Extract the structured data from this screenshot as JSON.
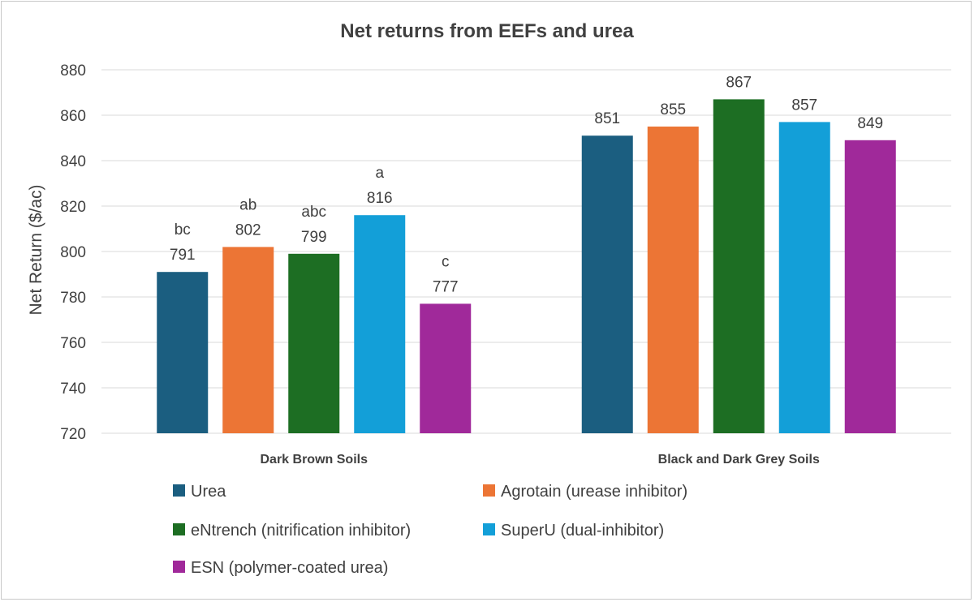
{
  "chart_data": {
    "type": "bar",
    "title": "Net returns from EEFs and urea",
    "xlabel": "",
    "ylabel": "Net Return ($/ac)",
    "ylim": [
      720,
      880
    ],
    "yticks": [
      720,
      740,
      760,
      780,
      800,
      820,
      840,
      860,
      880
    ],
    "grid": true,
    "legend_position": "bottom",
    "categories": [
      "Dark Brown Soils",
      "Black and Dark Grey Soils"
    ],
    "series": [
      {
        "name": "Urea",
        "color": "#1b5e80",
        "values": [
          791,
          851
        ],
        "letters": [
          "bc",
          ""
        ]
      },
      {
        "name": "Agrotain (urease inhibitor)",
        "color": "#ec7535",
        "values": [
          802,
          855
        ],
        "letters": [
          "ab",
          ""
        ]
      },
      {
        "name": "eNtrench (nitrification inhibitor)",
        "color": "#1d6e23",
        "values": [
          799,
          867
        ],
        "letters": [
          "abc",
          ""
        ]
      },
      {
        "name": "SuperU (dual-inhibitor)",
        "color": "#139fd8",
        "values": [
          816,
          857
        ],
        "letters": [
          "a",
          ""
        ]
      },
      {
        "name": "ESN (polymer-coated urea)",
        "color": "#a0299a",
        "values": [
          777,
          849
        ],
        "letters": [
          "c",
          ""
        ]
      }
    ]
  }
}
